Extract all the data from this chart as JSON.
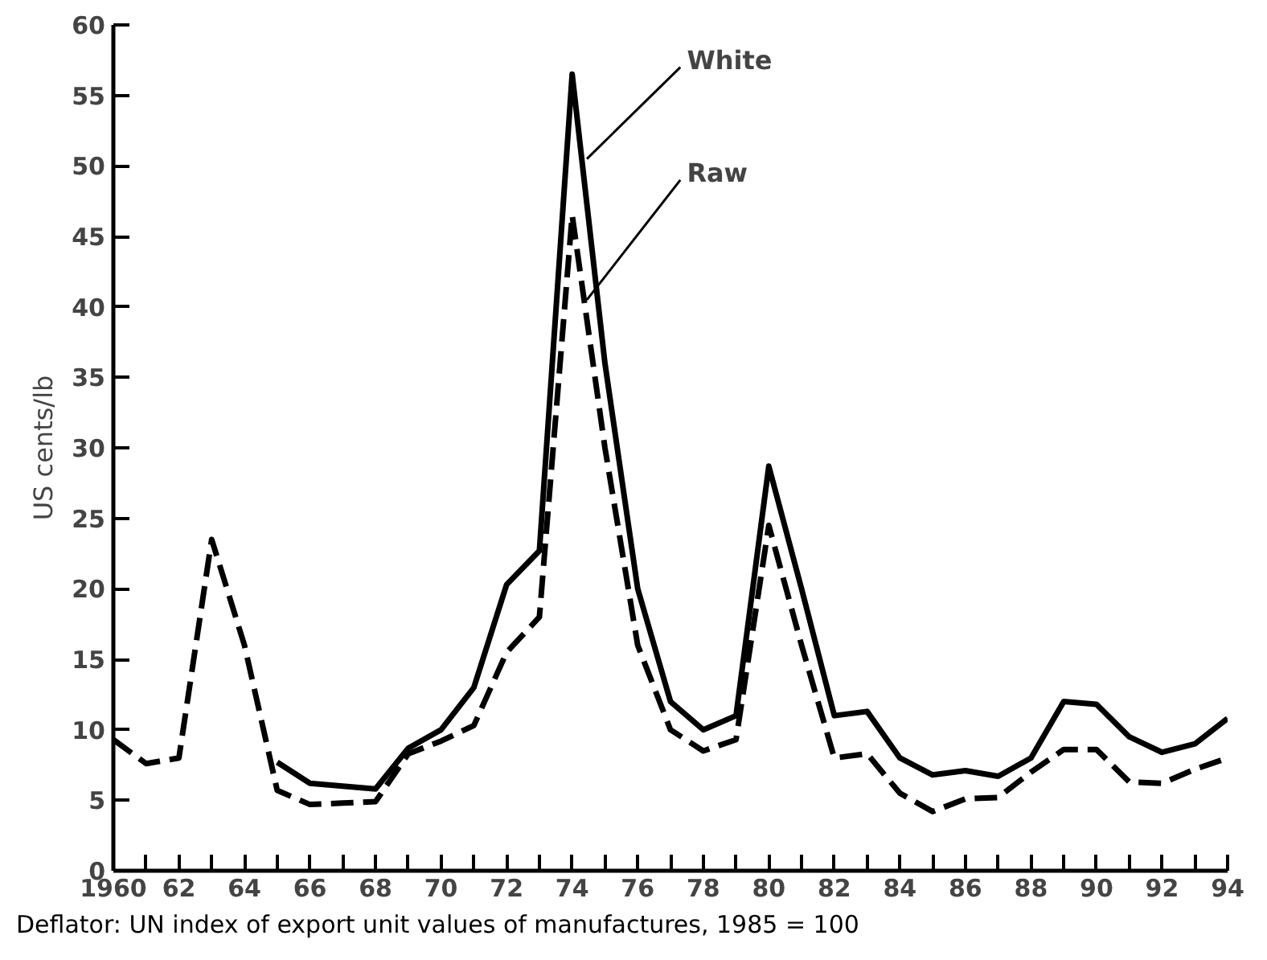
{
  "chart_data": {
    "type": "line",
    "ylabel": "US cents/lb",
    "x": [
      1960,
      1961,
      1962,
      1963,
      1964,
      1965,
      1966,
      1967,
      1968,
      1969,
      1970,
      1971,
      1972,
      1973,
      1974,
      1975,
      1976,
      1977,
      1978,
      1979,
      1980,
      1981,
      1982,
      1983,
      1984,
      1985,
      1986,
      1987,
      1988,
      1989,
      1990,
      1991,
      1992,
      1993,
      1994
    ],
    "series": [
      {
        "name": "White",
        "color": "#000000",
        "line_style": "solid",
        "values": [
          null,
          null,
          null,
          null,
          null,
          7.7,
          6.2,
          6,
          5.8,
          8.7,
          10,
          13,
          20.3,
          22.7,
          56.5,
          36,
          20,
          12,
          10,
          11,
          28.7,
          20,
          11,
          11.3,
          8,
          6.8,
          7.1,
          6.7,
          8,
          12,
          11.8,
          9.5,
          8.4,
          9,
          10.8
        ]
      },
      {
        "name": "Raw",
        "color": "#000000",
        "line_style": "dashed",
        "values": [
          9.3,
          7.6,
          8,
          23.5,
          16,
          5.7,
          4.7,
          4.8,
          4.9,
          8.3,
          9.2,
          10.3,
          15.5,
          18,
          46.5,
          30,
          16,
          10,
          8.5,
          9.3,
          24.5,
          16,
          8,
          8.3,
          5.5,
          4.2,
          5.1,
          5.2,
          7,
          8.6,
          8.6,
          6.3,
          6.2,
          7.2,
          8
        ]
      }
    ],
    "xlim": [
      1960,
      1994
    ],
    "xticks": [
      {
        "value": 1960,
        "label": "1960"
      },
      {
        "value": 1961,
        "label": null
      },
      {
        "value": 1962,
        "label": "62"
      },
      {
        "value": 1963,
        "label": null
      },
      {
        "value": 1964,
        "label": "64"
      },
      {
        "value": 1965,
        "label": null
      },
      {
        "value": 1966,
        "label": "66"
      },
      {
        "value": 1967,
        "label": null
      },
      {
        "value": 1968,
        "label": "68"
      },
      {
        "value": 1969,
        "label": null
      },
      {
        "value": 1970,
        "label": "70"
      },
      {
        "value": 1971,
        "label": null
      },
      {
        "value": 1972,
        "label": "72"
      },
      {
        "value": 1973,
        "label": null
      },
      {
        "value": 1974,
        "label": "74"
      },
      {
        "value": 1975,
        "label": null
      },
      {
        "value": 1976,
        "label": "76"
      },
      {
        "value": 1977,
        "label": null
      },
      {
        "value": 1978,
        "label": "78"
      },
      {
        "value": 1979,
        "label": null
      },
      {
        "value": 1980,
        "label": "80"
      },
      {
        "value": 1981,
        "label": null
      },
      {
        "value": 1982,
        "label": "82"
      },
      {
        "value": 1983,
        "label": null
      },
      {
        "value": 1984,
        "label": "84"
      },
      {
        "value": 1985,
        "label": null
      },
      {
        "value": 1986,
        "label": "86"
      },
      {
        "value": 1987,
        "label": null
      },
      {
        "value": 1988,
        "label": "88"
      },
      {
        "value": 1989,
        "label": null
      },
      {
        "value": 1990,
        "label": "90"
      },
      {
        "value": 1991,
        "label": null
      },
      {
        "value": 1992,
        "label": "92"
      },
      {
        "value": 1993,
        "label": null
      },
      {
        "value": 1994,
        "label": "94"
      }
    ],
    "ylim": [
      0,
      60
    ],
    "yticks": [
      0,
      5,
      10,
      15,
      20,
      25,
      30,
      35,
      40,
      45,
      50,
      55,
      60
    ],
    "grid": false,
    "legend": false,
    "marker": "none",
    "annotations": [
      "Deflator: UN index of export unit values of manufactures, 1985 = 100"
    ]
  }
}
